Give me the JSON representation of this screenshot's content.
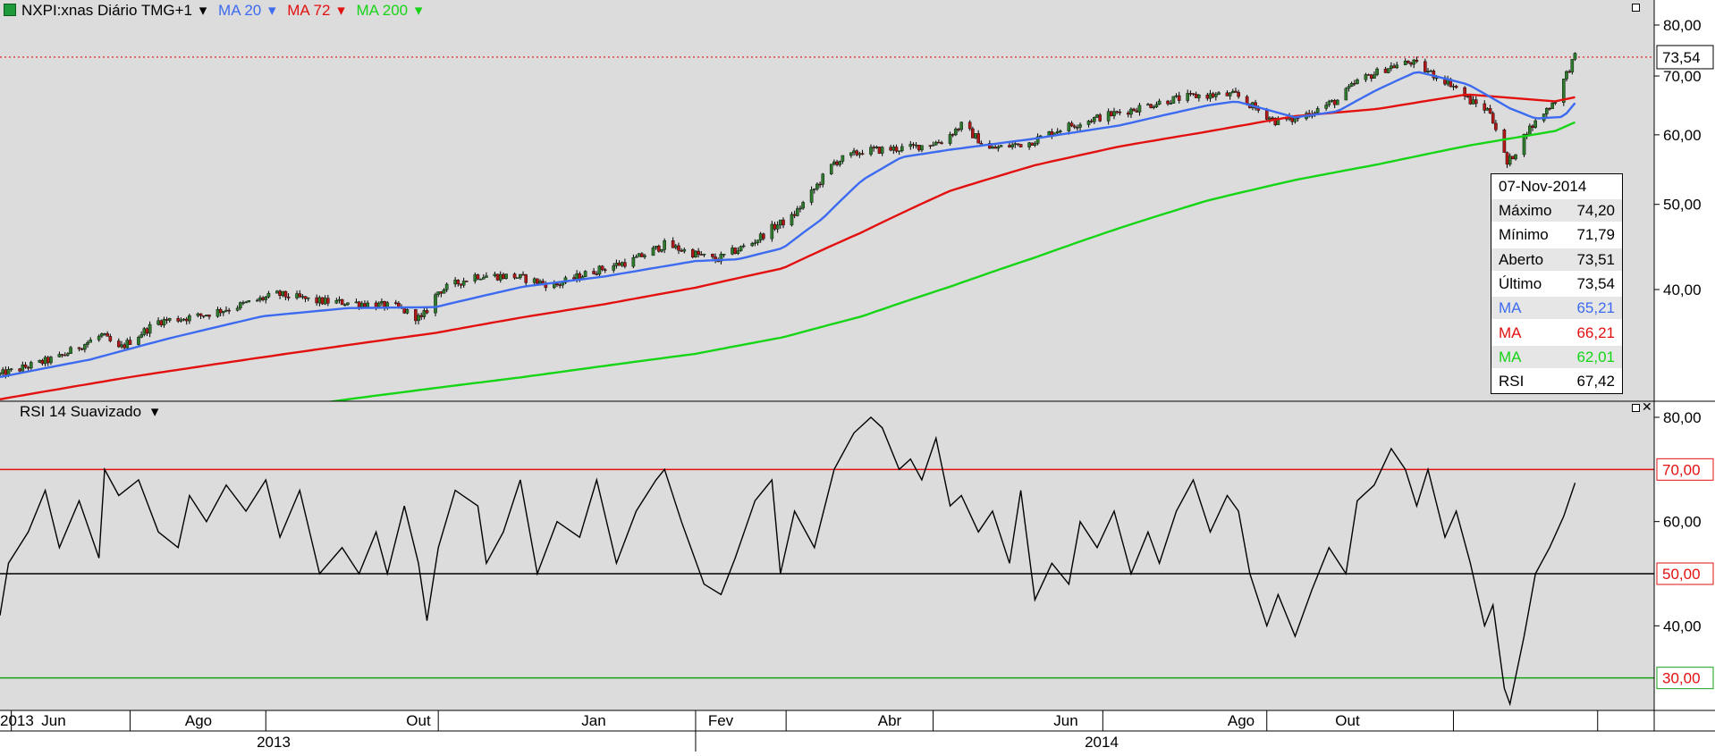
{
  "header": {
    "symbol": "NXPI:xnas Diário TMG+1",
    "indicators": [
      {
        "label": "MA 20",
        "color": "#3d6bf0"
      },
      {
        "label": "MA 72",
        "color": "#e31010"
      },
      {
        "label": "MA 200",
        "color": "#16d416"
      }
    ]
  },
  "rsi_header": {
    "label": "RSI 14 Suavizado"
  },
  "last_price": {
    "value": "73,54"
  },
  "info_box": {
    "date": "07-Nov-2014",
    "rows": [
      {
        "label": "Máximo",
        "value": "74,20",
        "color": "#000000"
      },
      {
        "label": "Mínimo",
        "value": "71,79",
        "color": "#000000"
      },
      {
        "label": "Aberto",
        "value": "73,51",
        "color": "#000000"
      },
      {
        "label": "Último",
        "value": "73,54",
        "color": "#000000"
      },
      {
        "label": "MA",
        "value": "65,21",
        "color": "#3d6bf0"
      },
      {
        "label": "MA",
        "value": "66,21",
        "color": "#e31010"
      },
      {
        "label": "MA",
        "value": "62,01",
        "color": "#16d416"
      },
      {
        "label": "RSI",
        "value": "67,42",
        "color": "#000000"
      }
    ]
  },
  "time_axis": {
    "months": [
      {
        "label": "2013"
      },
      {
        "label": "Jun"
      },
      {
        "label": "Ago"
      },
      {
        "label": "Out"
      },
      {
        "label": "Jan"
      },
      {
        "label": "Fev"
      },
      {
        "label": "Abr"
      },
      {
        "label": "Jun"
      },
      {
        "label": "Ago"
      },
      {
        "label": "Out"
      }
    ],
    "years": [
      {
        "label": "2013"
      },
      {
        "label": "2014"
      }
    ]
  },
  "colors": {
    "background": "#dcdcdc",
    "candle_up": "#2d7a2d",
    "candle_down": "#b01818"
  },
  "chart_data": [
    {
      "type": "candlestick",
      "title": "NXPI:xnas Diário TMG+1",
      "log_scale": true,
      "y_ticks": [
        {
          "value": 40,
          "label": "40,00"
        },
        {
          "value": 50,
          "label": "50,00"
        },
        {
          "value": 60,
          "label": "60,00"
        },
        {
          "value": 70,
          "label": "70,00"
        },
        {
          "value": 80,
          "label": "80,00"
        }
      ],
      "x_range": [
        "2013-04-29",
        "2014-12-05"
      ],
      "price_keypoints": [
        [
          "2013-04-29",
          32.0
        ],
        [
          "2013-05-20",
          33.5
        ],
        [
          "2013-06-04",
          35.5
        ],
        [
          "2013-06-10",
          34.2
        ],
        [
          "2013-06-24",
          36.8
        ],
        [
          "2013-07-08",
          37.3
        ],
        [
          "2013-07-22",
          38.3
        ],
        [
          "2013-08-05",
          39.5
        ],
        [
          "2013-08-19",
          38.8
        ],
        [
          "2013-09-03",
          38.6
        ],
        [
          "2013-09-16",
          38.2
        ],
        [
          "2013-09-25",
          37.0
        ],
        [
          "2013-10-01",
          39.8
        ],
        [
          "2013-10-14",
          41.5
        ],
        [
          "2013-10-28",
          41.4
        ],
        [
          "2013-11-11",
          40.4
        ],
        [
          "2013-11-25",
          42.0
        ],
        [
          "2013-12-09",
          43.2
        ],
        [
          "2013-12-20",
          45.0
        ],
        [
          "2014-01-07",
          43.2
        ],
        [
          "2014-01-20",
          45.2
        ],
        [
          "2014-01-28",
          47.2
        ],
        [
          "2014-02-03",
          48.3
        ],
        [
          "2014-02-10",
          51.5
        ],
        [
          "2014-02-18",
          55.8
        ],
        [
          "2014-02-28",
          57.5
        ],
        [
          "2014-03-17",
          58.0
        ],
        [
          "2014-03-28",
          59.0
        ],
        [
          "2014-04-04",
          61.5
        ],
        [
          "2014-04-14",
          57.8
        ],
        [
          "2014-04-28",
          58.8
        ],
        [
          "2014-05-09",
          61.0
        ],
        [
          "2014-05-20",
          62.5
        ],
        [
          "2014-06-04",
          64.2
        ],
        [
          "2014-06-16",
          65.7
        ],
        [
          "2014-06-27",
          66.5
        ],
        [
          "2014-07-10",
          66.6
        ],
        [
          "2014-07-17",
          64.3
        ],
        [
          "2014-07-24",
          62.2
        ],
        [
          "2014-07-31",
          62.5
        ],
        [
          "2014-08-07",
          64.0
        ],
        [
          "2014-08-15",
          65.7
        ],
        [
          "2014-08-22",
          69.0
        ],
        [
          "2014-09-02",
          71.6
        ],
        [
          "2014-09-10",
          72.6
        ],
        [
          "2014-09-17",
          70.5
        ],
        [
          "2014-09-24",
          68.7
        ],
        [
          "2014-10-01",
          65.5
        ],
        [
          "2014-10-08",
          63.8
        ],
        [
          "2014-10-14",
          55.5
        ],
        [
          "2014-10-17",
          57.5
        ],
        [
          "2014-10-21",
          60.5
        ],
        [
          "2014-10-24",
          62.0
        ],
        [
          "2014-10-31",
          65.8
        ],
        [
          "2014-11-05",
          71.5
        ],
        [
          "2014-11-07",
          73.54
        ]
      ],
      "ma20_keypoints": [
        [
          "2013-04-29",
          31.8
        ],
        [
          "2013-05-31",
          33.3
        ],
        [
          "2013-06-28",
          35.2
        ],
        [
          "2013-07-31",
          37.3
        ],
        [
          "2013-08-30",
          38.1
        ],
        [
          "2013-09-30",
          38.2
        ],
        [
          "2013-10-31",
          40.3
        ],
        [
          "2013-11-29",
          41.4
        ],
        [
          "2013-12-31",
          43.1
        ],
        [
          "2014-01-15",
          43.3
        ],
        [
          "2014-01-31",
          44.6
        ],
        [
          "2014-02-14",
          48.2
        ],
        [
          "2014-02-28",
          53.3
        ],
        [
          "2014-03-14",
          56.6
        ],
        [
          "2014-03-31",
          57.7
        ],
        [
          "2014-04-30",
          59.4
        ],
        [
          "2014-05-30",
          61.5
        ],
        [
          "2014-06-30",
          64.8
        ],
        [
          "2014-07-10",
          65.5
        ],
        [
          "2014-07-31",
          62.8
        ],
        [
          "2014-08-15",
          63.8
        ],
        [
          "2014-08-29",
          67.5
        ],
        [
          "2014-09-12",
          70.8
        ],
        [
          "2014-09-30",
          68.5
        ],
        [
          "2014-10-15",
          64.3
        ],
        [
          "2014-10-24",
          62.6
        ],
        [
          "2014-11-03",
          62.9
        ],
        [
          "2014-11-07",
          65.21
        ]
      ],
      "ma72_keypoints": [
        [
          "2013-04-29",
          30.0
        ],
        [
          "2013-06-14",
          31.8
        ],
        [
          "2013-07-31",
          33.5
        ],
        [
          "2013-09-30",
          35.7
        ],
        [
          "2013-10-31",
          37.2
        ],
        [
          "2013-11-29",
          38.5
        ],
        [
          "2013-12-31",
          40.2
        ],
        [
          "2014-01-31",
          42.3
        ],
        [
          "2014-02-28",
          46.5
        ],
        [
          "2014-03-31",
          51.8
        ],
        [
          "2014-04-30",
          55.4
        ],
        [
          "2014-05-30",
          58.2
        ],
        [
          "2014-06-30",
          60.5
        ],
        [
          "2014-07-31",
          63.0
        ],
        [
          "2014-08-29",
          64.2
        ],
        [
          "2014-09-30",
          66.7
        ],
        [
          "2014-10-31",
          65.5
        ],
        [
          "2014-11-07",
          66.21
        ]
      ],
      "ma200_keypoints": [
        [
          "2013-04-29",
          25.8
        ],
        [
          "2013-06-28",
          28.0
        ],
        [
          "2013-08-30",
          30.0
        ],
        [
          "2013-10-31",
          31.8
        ],
        [
          "2013-12-31",
          33.8
        ],
        [
          "2014-01-31",
          35.3
        ],
        [
          "2014-02-28",
          37.3
        ],
        [
          "2014-03-31",
          40.3
        ],
        [
          "2014-04-30",
          43.5
        ],
        [
          "2014-05-30",
          47.0
        ],
        [
          "2014-06-30",
          50.5
        ],
        [
          "2014-07-31",
          53.3
        ],
        [
          "2014-08-29",
          55.5
        ],
        [
          "2014-09-30",
          58.3
        ],
        [
          "2014-10-31",
          60.6
        ],
        [
          "2014-11-07",
          62.01
        ]
      ]
    },
    {
      "type": "line",
      "title": "RSI 14 Suavizado",
      "y_ticks": [
        {
          "value": 40,
          "label": "40,00"
        },
        {
          "value": 60,
          "label": "60,00"
        },
        {
          "value": 80,
          "label": "80,00"
        }
      ],
      "reference_lines": [
        {
          "value": 70,
          "label": "70,00",
          "color": "#e31010"
        },
        {
          "value": 50,
          "label": "50,00",
          "color": "#000000"
        },
        {
          "value": 30,
          "label": "30,00",
          "color": "#16a016"
        }
      ],
      "rsi_keypoints": [
        [
          "2013-04-29",
          42
        ],
        [
          "2013-05-02",
          52
        ],
        [
          "2013-05-09",
          58
        ],
        [
          "2013-05-15",
          66
        ],
        [
          "2013-05-20",
          55
        ],
        [
          "2013-05-27",
          64
        ],
        [
          "2013-06-03",
          53
        ],
        [
          "2013-06-05",
          70
        ],
        [
          "2013-06-10",
          65
        ],
        [
          "2013-06-17",
          68
        ],
        [
          "2013-06-24",
          58
        ],
        [
          "2013-07-01",
          55
        ],
        [
          "2013-07-05",
          65
        ],
        [
          "2013-07-11",
          60
        ],
        [
          "2013-07-18",
          67
        ],
        [
          "2013-07-25",
          62
        ],
        [
          "2013-08-01",
          68
        ],
        [
          "2013-08-06",
          57
        ],
        [
          "2013-08-13",
          66
        ],
        [
          "2013-08-20",
          50
        ],
        [
          "2013-08-28",
          55
        ],
        [
          "2013-09-03",
          50
        ],
        [
          "2013-09-09",
          58
        ],
        [
          "2013-09-13",
          50
        ],
        [
          "2013-09-19",
          63
        ],
        [
          "2013-09-24",
          52
        ],
        [
          "2013-09-27",
          41
        ],
        [
          "2013-10-01",
          55
        ],
        [
          "2013-10-07",
          66
        ],
        [
          "2013-10-15",
          63
        ],
        [
          "2013-10-18",
          52
        ],
        [
          "2013-10-24",
          58
        ],
        [
          "2013-10-30",
          68
        ],
        [
          "2013-11-05",
          50
        ],
        [
          "2013-11-12",
          60
        ],
        [
          "2013-11-20",
          57
        ],
        [
          "2013-11-26",
          68
        ],
        [
          "2013-12-03",
          52
        ],
        [
          "2013-12-10",
          62
        ],
        [
          "2013-12-17",
          68
        ],
        [
          "2013-12-20",
          70
        ],
        [
          "2013-12-26",
          60
        ],
        [
          "2014-01-03",
          48
        ],
        [
          "2014-01-09",
          46
        ],
        [
          "2014-01-14",
          53
        ],
        [
          "2014-01-21",
          64
        ],
        [
          "2014-01-27",
          68
        ],
        [
          "2014-01-30",
          50
        ],
        [
          "2014-02-04",
          62
        ],
        [
          "2014-02-11",
          55
        ],
        [
          "2014-02-18",
          70
        ],
        [
          "2014-02-25",
          77
        ],
        [
          "2014-03-03",
          80
        ],
        [
          "2014-03-07",
          78
        ],
        [
          "2014-03-13",
          70
        ],
        [
          "2014-03-17",
          72
        ],
        [
          "2014-03-21",
          68
        ],
        [
          "2014-03-26",
          76
        ],
        [
          "2014-03-31",
          63
        ],
        [
          "2014-04-04",
          65
        ],
        [
          "2014-04-10",
          58
        ],
        [
          "2014-04-15",
          62
        ],
        [
          "2014-04-21",
          52
        ],
        [
          "2014-04-25",
          66
        ],
        [
          "2014-04-30",
          45
        ],
        [
          "2014-05-06",
          52
        ],
        [
          "2014-05-12",
          48
        ],
        [
          "2014-05-16",
          60
        ],
        [
          "2014-05-22",
          55
        ],
        [
          "2014-05-28",
          62
        ],
        [
          "2014-06-03",
          50
        ],
        [
          "2014-06-09",
          58
        ],
        [
          "2014-06-13",
          52
        ],
        [
          "2014-06-19",
          62
        ],
        [
          "2014-06-25",
          68
        ],
        [
          "2014-07-01",
          58
        ],
        [
          "2014-07-07",
          65
        ],
        [
          "2014-07-11",
          62
        ],
        [
          "2014-07-15",
          50
        ],
        [
          "2014-07-21",
          40
        ],
        [
          "2014-07-25",
          46
        ],
        [
          "2014-07-31",
          38
        ],
        [
          "2014-08-06",
          47
        ],
        [
          "2014-08-12",
          55
        ],
        [
          "2014-08-18",
          50
        ],
        [
          "2014-08-22",
          64
        ],
        [
          "2014-08-28",
          67
        ],
        [
          "2014-09-03",
          74
        ],
        [
          "2014-09-08",
          70
        ],
        [
          "2014-09-12",
          63
        ],
        [
          "2014-09-16",
          70
        ],
        [
          "2014-09-22",
          57
        ],
        [
          "2014-09-26",
          62
        ],
        [
          "2014-10-01",
          52
        ],
        [
          "2014-10-06",
          40
        ],
        [
          "2014-10-09",
          44
        ],
        [
          "2014-10-13",
          28
        ],
        [
          "2014-10-15",
          25
        ],
        [
          "2014-10-20",
          38
        ],
        [
          "2014-10-24",
          50
        ],
        [
          "2014-10-29",
          55
        ],
        [
          "2014-11-03",
          61
        ],
        [
          "2014-11-07",
          67.42
        ]
      ]
    }
  ]
}
